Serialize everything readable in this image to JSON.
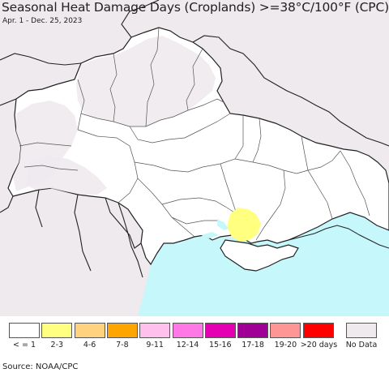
{
  "header": {
    "title": "Seasonal Heat Damage Days (Croplands) >=38°C/100°F (CPC)",
    "subtitle": "Apr. 1 - Dec. 25, 2023"
  },
  "map": {
    "region": "Ukraine",
    "colors": {
      "land": "#ffffff",
      "no_data": "#eeeaee",
      "sea": "#c5f7fb",
      "border": "#222222",
      "oblast_border": "#555555",
      "highlight_2_3": "#ffff80"
    }
  },
  "legend": {
    "items": [
      {
        "label": "< = 1",
        "color": "#ffffff"
      },
      {
        "label": "2-3",
        "color": "#ffff80"
      },
      {
        "label": "4-6",
        "color": "#ffd280"
      },
      {
        "label": "7-8",
        "color": "#ffa500"
      },
      {
        "label": "9-11",
        "color": "#ffc0ee"
      },
      {
        "label": "12-14",
        "color": "#ff78e6"
      },
      {
        "label": "15-16",
        "color": "#e600b4"
      },
      {
        "label": "17-18",
        "color": "#a00096"
      },
      {
        "label": "19-20",
        "color": "#ff9696"
      },
      {
        "label": ">20 days",
        "color": "#ff0000"
      }
    ],
    "no_data": {
      "label": "No Data",
      "color": "#eeeaee"
    }
  },
  "source": "Source: NOAA/CPC"
}
